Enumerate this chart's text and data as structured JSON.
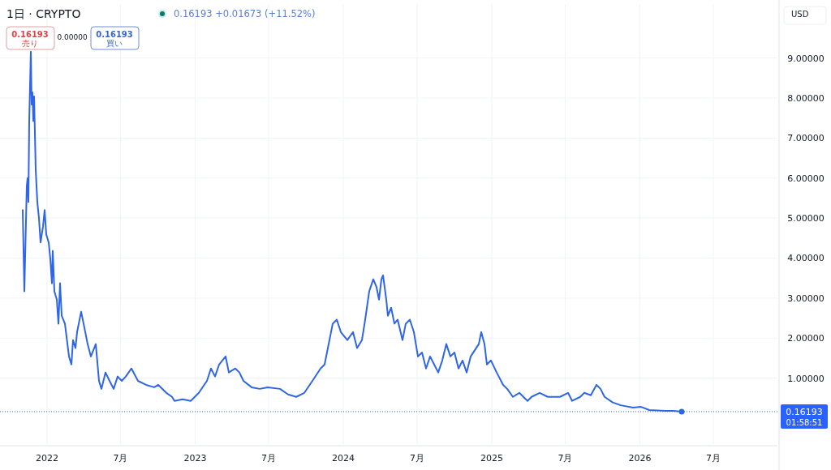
{
  "chart_data": {
    "type": "line",
    "title": "1日 · CRYPTO",
    "subtitle": "0.16193  +0.01673 (+11.52%)",
    "annotations": [
      "0.16193",
      "売り",
      "0.00000",
      "0.16193",
      "買い",
      "USD",
      "01:58:51"
    ],
    "x": [
      "2021-11-02",
      "2021-11-06",
      "2021-11-12",
      "2021-11-14",
      "2021-11-16",
      "2021-11-18",
      "2021-11-22",
      "2021-11-24",
      "2021-11-26",
      "2021-11-28",
      "2021-11-30",
      "2021-12-04",
      "2021-12-08",
      "2021-12-12",
      "2021-12-16",
      "2021-12-22",
      "2021-12-26",
      "2021-12-30",
      "2022-01-05",
      "2022-01-09",
      "2022-01-13",
      "2022-01-15",
      "2022-01-19",
      "2022-01-25",
      "2022-01-29",
      "2022-02-02",
      "2022-02-06",
      "2022-02-14",
      "2022-02-24",
      "2022-03-02",
      "2022-03-06",
      "2022-03-12",
      "2022-03-16",
      "2022-03-26",
      "2022-04-01",
      "2022-04-11",
      "2022-04-19",
      "2022-05-01",
      "2022-05-09",
      "2022-05-15",
      "2022-05-25",
      "2022-06-04",
      "2022-06-14",
      "2022-06-24",
      "2022-07-04",
      "2022-07-14",
      "2022-07-28",
      "2022-08-13",
      "2022-09-02",
      "2022-09-22",
      "2022-10-02",
      "2022-10-22",
      "2022-11-05",
      "2022-11-11",
      "2022-12-01",
      "2022-12-21",
      "2023-01-10",
      "2023-01-30",
      "2023-02-09",
      "2023-02-19",
      "2023-03-01",
      "2023-03-17",
      "2023-03-25",
      "2023-04-10",
      "2023-04-20",
      "2023-04-30",
      "2023-05-20",
      "2023-06-09",
      "2023-06-29",
      "2023-07-29",
      "2023-08-18",
      "2023-09-07",
      "2023-09-27",
      "2023-10-17",
      "2023-11-06",
      "2023-11-16",
      "2023-12-06",
      "2023-12-16",
      "2023-12-26",
      "2024-01-11",
      "2024-01-25",
      "2024-02-04",
      "2024-02-16",
      "2024-02-24",
      "2024-03-05",
      "2024-03-15",
      "2024-03-23",
      "2024-03-29",
      "2024-04-04",
      "2024-04-08",
      "2024-04-16",
      "2024-04-20",
      "2024-04-28",
      "2024-05-06",
      "2024-05-14",
      "2024-05-26",
      "2024-06-03",
      "2024-06-13",
      "2024-06-23",
      "2024-07-03",
      "2024-07-13",
      "2024-07-23",
      "2024-08-02",
      "2024-08-12",
      "2024-08-22",
      "2024-09-01",
      "2024-09-11",
      "2024-09-21",
      "2024-10-01",
      "2024-10-11",
      "2024-10-21",
      "2024-10-31",
      "2024-11-10",
      "2024-11-30",
      "2024-12-06",
      "2024-12-14",
      "2024-12-20",
      "2024-12-30",
      "2025-01-13",
      "2025-01-29",
      "2025-02-08",
      "2025-02-22",
      "2025-03-10",
      "2025-03-30",
      "2025-04-09",
      "2025-04-29",
      "2025-05-19",
      "2025-06-18",
      "2025-07-08",
      "2025-07-18",
      "2025-08-07",
      "2025-08-17",
      "2025-09-02",
      "2025-09-16",
      "2025-09-26",
      "2025-10-06",
      "2025-10-26",
      "2025-11-15",
      "2025-12-15",
      "2026-01-04",
      "2026-01-24",
      "2026-03-05",
      "2026-03-25",
      "2026-04-14"
    ],
    "series": [
      {
        "color": "#2f66e8",
        "values": [
          5.2,
          3.17,
          5.8,
          6.0,
          5.4,
          7.43,
          9.16,
          7.84,
          8.14,
          7.43,
          8.04,
          6.21,
          5.4,
          5.0,
          4.39,
          4.79,
          5.2,
          4.59,
          4.39,
          3.98,
          3.37,
          4.18,
          3.17,
          2.96,
          2.36,
          3.37,
          2.56,
          2.36,
          1.54,
          1.34,
          1.95,
          1.75,
          2.15,
          2.66,
          2.36,
          1.85,
          1.54,
          1.85,
          0.93,
          0.73,
          1.14,
          0.93,
          0.73,
          1.04,
          0.93,
          1.04,
          1.24,
          0.93,
          0.83,
          0.77,
          0.83,
          0.63,
          0.53,
          0.43,
          0.47,
          0.43,
          0.63,
          0.93,
          1.24,
          1.04,
          1.34,
          1.54,
          1.14,
          1.24,
          1.14,
          0.93,
          0.77,
          0.73,
          0.77,
          0.73,
          0.59,
          0.53,
          0.63,
          0.93,
          1.24,
          1.34,
          2.36,
          2.46,
          2.15,
          1.95,
          2.15,
          1.75,
          1.95,
          2.46,
          3.17,
          3.47,
          3.27,
          2.96,
          3.47,
          3.57,
          2.96,
          2.56,
          2.76,
          2.36,
          2.46,
          1.95,
          2.36,
          2.46,
          2.15,
          1.54,
          1.64,
          1.24,
          1.54,
          1.34,
          1.14,
          1.44,
          1.85,
          1.54,
          1.64,
          1.24,
          1.44,
          1.14,
          1.54,
          1.85,
          2.15,
          1.85,
          1.34,
          1.44,
          1.14,
          0.83,
          0.73,
          0.53,
          0.63,
          0.43,
          0.53,
          0.63,
          0.53,
          0.53,
          0.63,
          0.43,
          0.53,
          0.63,
          0.57,
          0.83,
          0.73,
          0.53,
          0.39,
          0.32,
          0.26,
          0.28,
          0.2,
          0.18,
          0.18,
          0.16
        ]
      }
    ],
    "xlim": [
      "2021-09-07",
      "2026-12-06"
    ],
    "xticks": [
      {
        "value": "2022-01-01",
        "label": "2022"
      },
      {
        "value": "2022-07-01",
        "label": "7月"
      },
      {
        "value": "2023-01-01",
        "label": "2023"
      },
      {
        "value": "2023-07-01",
        "label": "7月"
      },
      {
        "value": "2024-01-01",
        "label": "2024"
      },
      {
        "value": "2024-07-01",
        "label": "7月"
      },
      {
        "value": "2025-01-01",
        "label": "2025"
      },
      {
        "value": "2025-07-01",
        "label": "7月"
      },
      {
        "value": "2026-01-01",
        "label": "2026"
      },
      {
        "value": "2026-07-01",
        "label": "7月"
      }
    ],
    "ylim": [
      -0.65,
      10.35
    ],
    "yticks": [
      {
        "value": 1,
        "label": "1.00000"
      },
      {
        "value": 2,
        "label": "2.00000"
      },
      {
        "value": 3,
        "label": "3.00000"
      },
      {
        "value": 4,
        "label": "4.00000"
      },
      {
        "value": 5,
        "label": "5.00000"
      },
      {
        "value": 6,
        "label": "6.00000"
      },
      {
        "value": 7,
        "label": "7.00000"
      },
      {
        "value": 8,
        "label": "8.00000"
      },
      {
        "value": 9,
        "label": "9.00000"
      }
    ],
    "ref_lines": [
      {
        "axis": "y",
        "value": 0.16193,
        "label": "0.16193",
        "color": "#2962ff",
        "line_style": "dotted"
      }
    ],
    "grid": true,
    "line_style": "solid"
  }
}
